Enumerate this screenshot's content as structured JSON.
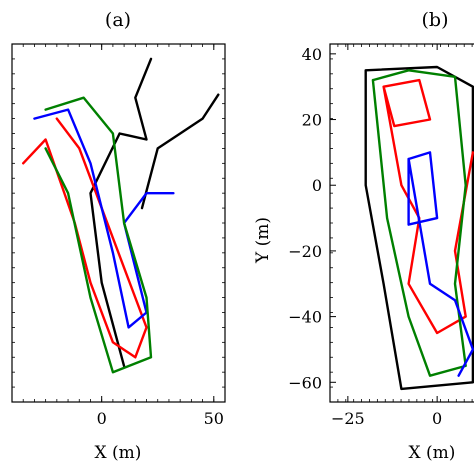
{
  "chart_data": [
    {
      "type": "line",
      "panel_label": "(a)",
      "xlabel": "X (m)",
      "ylabel": "",
      "xlim": [
        -40,
        55
      ],
      "ylim": [
        -70,
        50
      ],
      "xticks": [
        0,
        50
      ],
      "xtick_labels": [
        "0",
        "50"
      ],
      "yticks": [],
      "ytick_labels": [],
      "grid": false,
      "series": [
        {
          "color": "#000000",
          "points": [
            [
              10,
              -58
            ],
            [
              0,
              -30
            ],
            [
              -5,
              0
            ],
            [
              8,
              20
            ],
            [
              20,
              18
            ],
            [
              15,
              32
            ],
            [
              22,
              45
            ]
          ]
        },
        {
          "color": "#000000",
          "points": [
            [
              18,
              -5
            ],
            [
              25,
              15
            ],
            [
              35,
              20
            ],
            [
              45,
              25
            ],
            [
              52,
              33
            ]
          ]
        },
        {
          "color": "#ff0000",
          "points": [
            [
              -35,
              10
            ],
            [
              -25,
              18
            ],
            [
              -12,
              -10
            ],
            [
              -5,
              -30
            ],
            [
              5,
              -50
            ],
            [
              15,
              -55
            ],
            [
              20,
              -45
            ],
            [
              10,
              -25
            ],
            [
              0,
              -5
            ],
            [
              -10,
              15
            ],
            [
              -20,
              25
            ]
          ]
        },
        {
          "color": "#0000ff",
          "points": [
            [
              -30,
              25
            ],
            [
              -15,
              28
            ],
            [
              -5,
              10
            ],
            [
              5,
              -20
            ],
            [
              12,
              -45
            ],
            [
              20,
              -40
            ],
            [
              10,
              -10
            ],
            [
              20,
              0
            ],
            [
              32,
              0
            ]
          ]
        },
        {
          "color": "#008000",
          "points": [
            [
              -25,
              28
            ],
            [
              -8,
              32
            ],
            [
              5,
              20
            ],
            [
              10,
              -10
            ],
            [
              20,
              -35
            ],
            [
              22,
              -55
            ],
            [
              5,
              -60
            ],
            [
              -5,
              -35
            ],
            [
              -15,
              0
            ],
            [
              -25,
              15
            ]
          ]
        }
      ]
    },
    {
      "type": "line",
      "panel_label": "(b)",
      "xlabel": "X (m)",
      "ylabel": "Y (m)",
      "xlim": [
        -30,
        12
      ],
      "ylim": [
        -66,
        43
      ],
      "xticks": [
        -25,
        0
      ],
      "xtick_labels": [
        "−25",
        "0"
      ],
      "yticks": [
        40,
        20,
        0,
        -20,
        -40,
        -60
      ],
      "ytick_labels": [
        "40",
        "20",
        "0",
        "−20",
        "−40",
        "−60"
      ],
      "grid": false,
      "series": [
        {
          "color": "#000000",
          "points": [
            [
              -20,
              35
            ],
            [
              0,
              36
            ],
            [
              10,
              30
            ],
            [
              10,
              -60
            ],
            [
              -10,
              -62
            ],
            [
              -15,
              -30
            ],
            [
              -20,
              0
            ],
            [
              -20,
              35
            ]
          ]
        },
        {
          "color": "#ff0000",
          "points": [
            [
              -15,
              30
            ],
            [
              -5,
              32
            ],
            [
              -2,
              20
            ],
            [
              -12,
              18
            ],
            [
              -15,
              30
            ],
            [
              -10,
              0
            ],
            [
              -5,
              -10
            ],
            [
              -8,
              -30
            ],
            [
              0,
              -45
            ],
            [
              8,
              -40
            ],
            [
              5,
              -20
            ],
            [
              10,
              10
            ]
          ]
        },
        {
          "color": "#008000",
          "points": [
            [
              -18,
              32
            ],
            [
              -8,
              35
            ],
            [
              5,
              33
            ],
            [
              8,
              0
            ],
            [
              5,
              -30
            ],
            [
              8,
              -55
            ],
            [
              -2,
              -58
            ],
            [
              -8,
              -40
            ],
            [
              -14,
              -10
            ],
            [
              -18,
              32
            ]
          ]
        },
        {
          "color": "#0000ff",
          "points": [
            [
              -8,
              8
            ],
            [
              -2,
              10
            ],
            [
              0,
              -10
            ],
            [
              -8,
              -12
            ],
            [
              -8,
              8
            ],
            [
              -2,
              -30
            ],
            [
              5,
              -35
            ],
            [
              10,
              -50
            ],
            [
              6,
              -58
            ]
          ]
        }
      ]
    }
  ]
}
